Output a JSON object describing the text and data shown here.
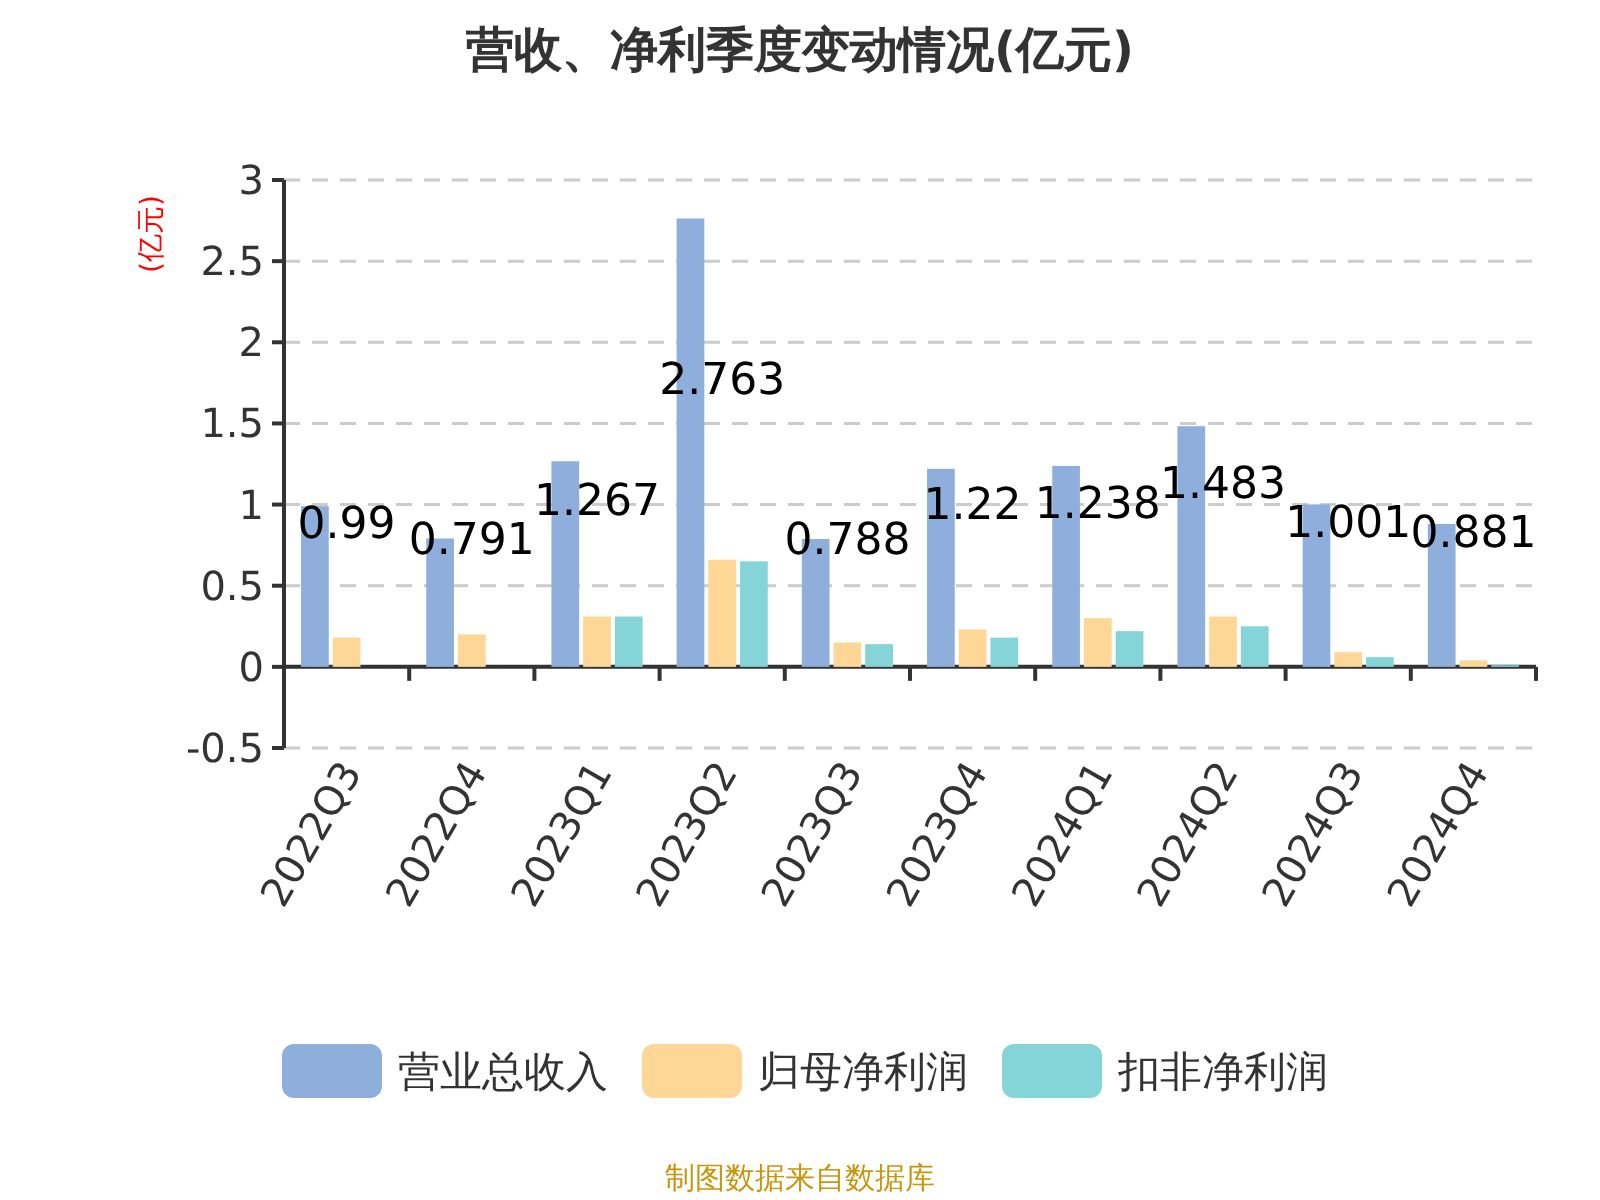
{
  "chart_data": {
    "type": "bar",
    "title": "营收、净利季度变动情况(亿元)",
    "ylabel": "(亿元)",
    "categories": [
      "2022Q3",
      "2022Q4",
      "2023Q1",
      "2023Q2",
      "2023Q3",
      "2023Q4",
      "2024Q1",
      "2024Q2",
      "2024Q3",
      "2024Q4"
    ],
    "series": [
      {
        "name": "营业总收入",
        "color": "#8eaedb",
        "values": [
          0.99,
          0.791,
          1.267,
          2.763,
          0.788,
          1.22,
          1.238,
          1.483,
          1.001,
          0.881
        ],
        "value_labels": [
          "0.99",
          "0.791",
          "1.267",
          "2.763",
          "0.788",
          "1.22",
          "1.238",
          "1.483",
          "1.001",
          "0.881"
        ]
      },
      {
        "name": "归母净利润",
        "color": "#fed797",
        "values": [
          0.18,
          0.2,
          0.31,
          0.66,
          0.15,
          0.23,
          0.3,
          0.31,
          0.09,
          0.04
        ]
      },
      {
        "name": "扣非净利润",
        "color": "#84d4d8",
        "values": [
          null,
          null,
          0.31,
          0.65,
          0.14,
          0.18,
          0.22,
          0.25,
          0.06,
          0.01
        ]
      }
    ],
    "ylim": [
      -0.5,
      3
    ],
    "yticks": [
      -0.5,
      0,
      0.5,
      1,
      1.5,
      2,
      2.5,
      3
    ],
    "grid": "y",
    "legend": "bottom",
    "annotations": [
      "制图数据来自数据库"
    ]
  }
}
